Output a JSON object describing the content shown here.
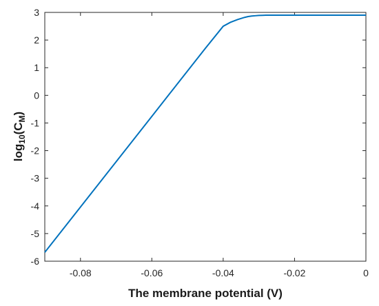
{
  "chart_data": {
    "type": "line",
    "xlabel": "The membrane potential (V)",
    "ylabel": {
      "main": "log",
      "main_sub": "10",
      "paren_open": "(C",
      "paren_sub": "M",
      "paren_close": ")"
    },
    "xlim": [
      -0.09,
      0
    ],
    "ylim": [
      -6,
      3
    ],
    "xticks": [
      -0.08,
      -0.06,
      -0.04,
      -0.02,
      0
    ],
    "xtick_labels": [
      "-0.08",
      "-0.06",
      "-0.04",
      "-0.02",
      "0"
    ],
    "yticks": [
      -6,
      -5,
      -4,
      -3,
      -2,
      -1,
      0,
      1,
      2,
      3
    ],
    "ytick_labels": [
      "-6",
      "-5",
      "-4",
      "-3",
      "-2",
      "-1",
      "0",
      "1",
      "2",
      "3"
    ],
    "grid": false,
    "series": [
      {
        "color": "#0072BD",
        "x": [
          -0.09,
          -0.085,
          -0.08,
          -0.075,
          -0.07,
          -0.065,
          -0.06,
          -0.055,
          -0.05,
          -0.045,
          -0.04,
          -0.038,
          -0.036,
          -0.035,
          -0.034,
          -0.033,
          -0.032,
          -0.031,
          -0.03,
          -0.029,
          -0.028,
          -0.026,
          -0.024,
          -0.022,
          -0.02,
          -0.015,
          -0.01,
          -0.005,
          0
        ],
        "y": [
          -5.68,
          -4.86,
          -4.04,
          -3.22,
          -2.4,
          -1.58,
          -0.76,
          0.06,
          0.88,
          1.7,
          2.5,
          2.64,
          2.74,
          2.78,
          2.82,
          2.85,
          2.87,
          2.88,
          2.89,
          2.895,
          2.9,
          2.9,
          2.9,
          2.9,
          2.9,
          2.9,
          2.9,
          2.9,
          2.9
        ]
      }
    ]
  }
}
